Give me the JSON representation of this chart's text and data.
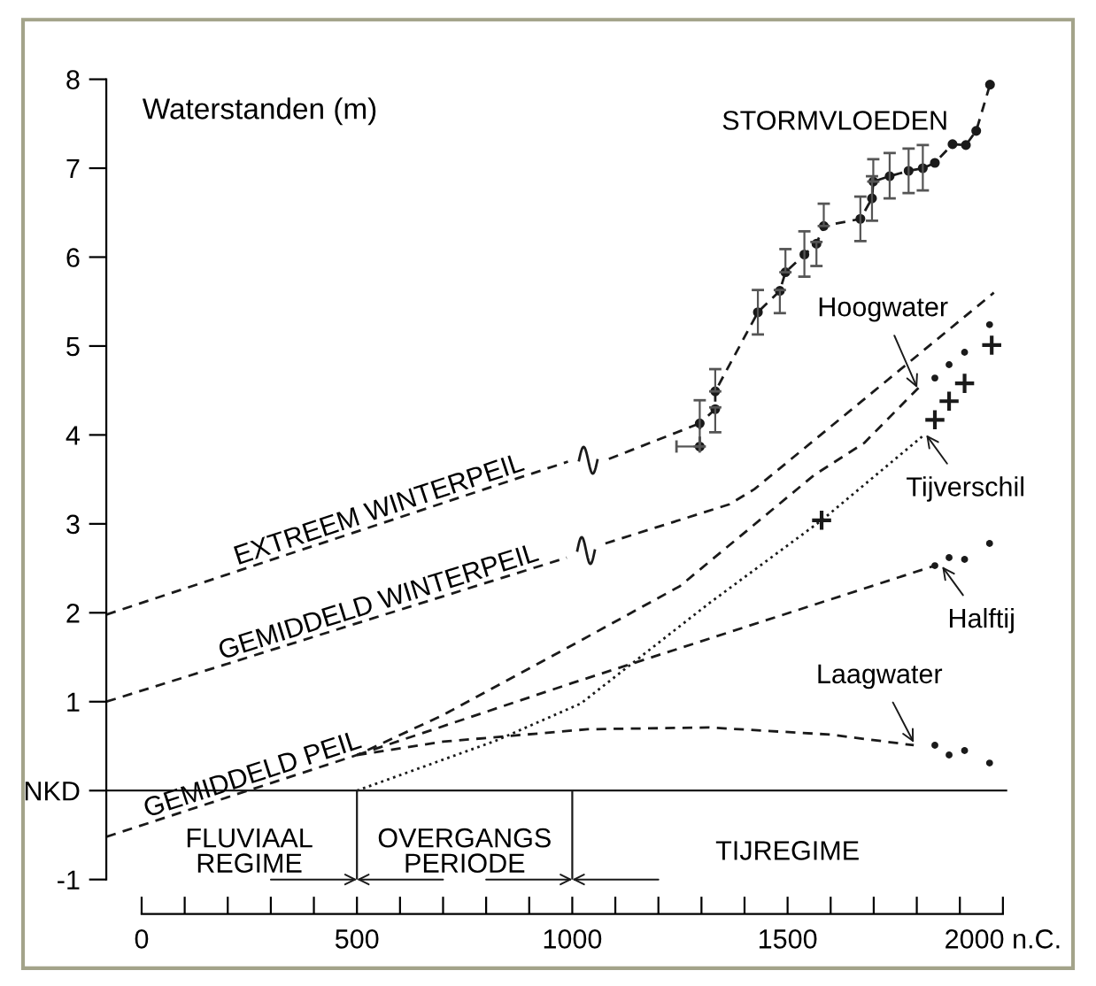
{
  "chart_data": {
    "type": "line",
    "ylabel": "Waterstanden (m)",
    "xlim": [
      -82,
      2010
    ],
    "ylim": [
      -1,
      8
    ],
    "xticks": [
      0,
      {
        "value": 100,
        "label": null
      },
      {
        "value": 200,
        "label": null
      },
      {
        "value": 300,
        "label": null
      },
      {
        "value": 400,
        "label": null
      },
      500,
      {
        "value": 600,
        "label": null
      },
      {
        "value": 700,
        "label": null
      },
      {
        "value": 800,
        "label": null
      },
      {
        "value": 900,
        "label": null
      },
      1000,
      {
        "value": 1100,
        "label": null
      },
      {
        "value": 1200,
        "label": null
      },
      {
        "value": 1300,
        "label": null
      },
      {
        "value": 1400,
        "label": null
      },
      1500,
      {
        "value": 1600,
        "label": null
      },
      {
        "value": 1700,
        "label": null
      },
      {
        "value": 1800,
        "label": null
      },
      {
        "value": 1900,
        "label": null
      },
      {
        "value": 2000,
        "label": "2000 n.C."
      }
    ],
    "yticks": [
      -1,
      {
        "value": 0,
        "label": "NKD"
      },
      1,
      2,
      3,
      4,
      5,
      6,
      7,
      8
    ],
    "ref_lines": [
      {
        "axis": "y",
        "value": 0,
        "color": "#1a1a1a"
      },
      {
        "axis": "x",
        "value": 500,
        "color": "#1a1a1a"
      },
      {
        "axis": "x",
        "value": 1000,
        "color": "#1a1a1a"
      }
    ],
    "annotations": [
      {
        "text": "Hoogwater",
        "x": 1801,
        "y": 4.53
      },
      {
        "text": "Tijverschil",
        "x": 1822,
        "y": 4.0
      },
      {
        "text": "Halftij",
        "x": 1859,
        "y": 2.52
      },
      {
        "text": "Laagwater",
        "x": 1793,
        "y": 0.54
      },
      "FLUVIAAL\nREGIME",
      "OVERGANGS\nPERIODE",
      "TIJREGIME"
    ],
    "series": [
      {
        "name": "EXTREEM WINTERPEIL",
        "line_style": "dashed",
        "color": "#1a1a1a",
        "x": [
          -82,
          990,
          1037,
          1085,
          1296
        ],
        "values": [
          1.98,
          3.7,
          null,
          3.73,
          4.13
        ]
      },
      {
        "name": "GEMIDDELD WINTERPEIL",
        "line_style": "dashed",
        "color": "#1a1a1a",
        "x": [
          -82,
          987,
          1032,
          1077,
          1365,
          1423,
          1700,
          1979
        ],
        "values": [
          1.0,
          2.62,
          null,
          2.78,
          3.22,
          3.39,
          4.49,
          5.6
        ]
      },
      {
        "name": "GEMIDDELD PEIL",
        "line_style": "dashed",
        "color": "#1a1a1a",
        "x": [
          -82,
          500,
          700,
          979,
          1250,
          1562,
          1678,
          1804
        ],
        "values": [
          -0.52,
          0.4,
          0.85,
          1.58,
          2.3,
          3.55,
          3.91,
          4.53
        ]
      },
      {
        "type": "scatter",
        "marker": "circle",
        "color": "#1a1a1a",
        "x": [
          1842,
          1875,
          1911,
          1969
        ],
        "values": [
          4.64,
          4.79,
          4.93,
          5.24
        ]
      },
      {
        "line_style": "dashed",
        "color": "#1a1a1a",
        "x": [
          500,
          1000,
          1842
        ],
        "values": [
          0.4,
          1.21,
          2.53
        ]
      },
      {
        "type": "scatter",
        "marker": "circle",
        "color": "#1a1a1a",
        "x": [
          1842,
          1875,
          1911,
          1969
        ],
        "values": [
          2.53,
          2.62,
          2.6,
          2.78
        ]
      },
      {
        "line_style": "dashed",
        "color": "#1a1a1a",
        "x": [
          500,
          700,
          1036,
          1316,
          1600,
          1793
        ],
        "values": [
          0.4,
          0.55,
          0.69,
          0.71,
          0.63,
          0.51
        ]
      },
      {
        "type": "scatter",
        "marker": "circle",
        "color": "#1a1a1a",
        "x": [
          1842,
          1875,
          1911,
          1969
        ],
        "values": [
          0.51,
          0.4,
          0.45,
          0.31
        ]
      },
      {
        "line_style": "dotted",
        "color": "#1a1a1a",
        "x": [
          500,
          822,
          1020,
          1316,
          1579,
          1817
        ],
        "values": [
          0.0,
          0.56,
          0.98,
          2.1,
          3.04,
          4.0
        ]
      },
      {
        "type": "scatter",
        "marker": "cross",
        "color": "#1a1a1a",
        "x": [
          1579,
          1842,
          1875,
          1911,
          1974
        ],
        "values": [
          3.04,
          4.17,
          4.38,
          4.58,
          5.01
        ]
      },
      {
        "name": "STORMVLOEDEN",
        "line_style": "dashed",
        "marker": "circle",
        "color": "#1a1a1a",
        "x": [
          1296,
          1296,
          1332,
          1332,
          1431,
          1482,
          1495,
          1539,
          1567,
          1584,
          1669,
          1696,
          1699,
          1737,
          1781,
          1814,
          1842,
          1883,
          1914,
          1938,
          1970
        ],
        "values": [
          3.87,
          4.13,
          4.29,
          4.49,
          5.38,
          5.62,
          5.83,
          6.03,
          6.15,
          6.35,
          6.43,
          6.66,
          6.85,
          6.91,
          6.97,
          7.0,
          7.06,
          7.27,
          7.26,
          7.42,
          7.94
        ],
        "errors": [
          null,
          [
            3.87,
            4.39
          ],
          [
            4.03,
            4.31
          ],
          [
            4.49,
            4.74
          ],
          [
            5.13,
            5.63
          ],
          [
            5.37,
            5.63
          ],
          [
            5.83,
            6.09
          ],
          [
            5.78,
            6.29
          ],
          [
            5.9,
            6.17
          ],
          [
            6.35,
            6.6
          ],
          [
            6.18,
            6.68
          ],
          [
            6.41,
            6.91
          ],
          [
            6.85,
            7.1
          ],
          [
            6.66,
            7.17
          ],
          [
            6.72,
            7.22
          ],
          [
            6.75,
            7.26
          ],
          null,
          null,
          null,
          null,
          null
        ],
        "xerrors": [
          [
            1242,
            1296
          ],
          null,
          null,
          null,
          null,
          null,
          null,
          null,
          null,
          null,
          null,
          null,
          null,
          null,
          null,
          null,
          null,
          null,
          null,
          null,
          null
        ]
      }
    ]
  }
}
